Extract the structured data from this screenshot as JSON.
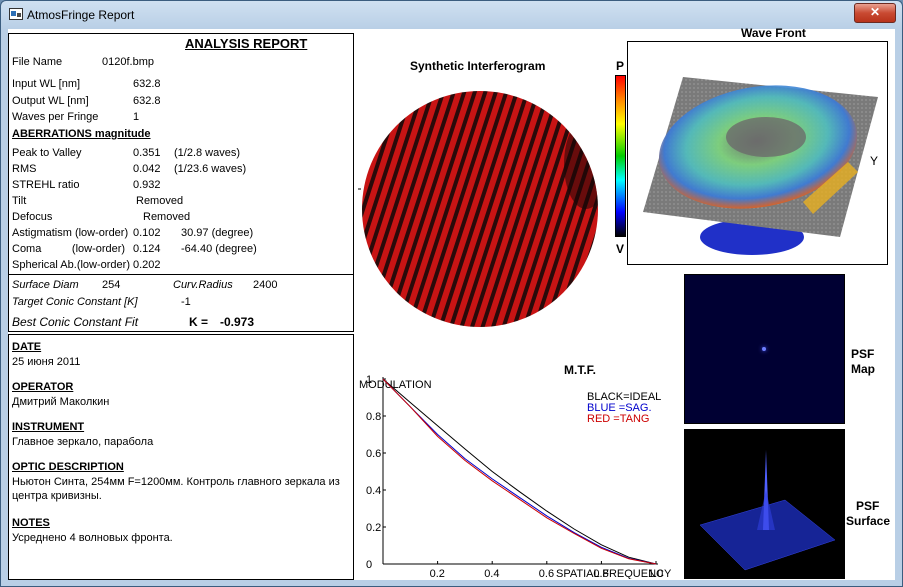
{
  "window": {
    "title": "AtmosFringe  Report",
    "close_label": "✕"
  },
  "report": {
    "heading": "ANALYSIS  REPORT",
    "file_name_label": "File Name",
    "file_name": "0120f.bmp",
    "input_wl_label": "Input  WL [nm]",
    "input_wl": "632.8",
    "output_wl_label": "Output WL [nm]",
    "output_wl": "632.8",
    "waves_label": "Waves per Fringe",
    "waves": "1",
    "aberr_heading": "ABERRATIONS magnitude",
    "pv_label": "Peak to Valley",
    "pv": "0.351",
    "pv_waves": "(1/2.8 waves)",
    "rms_label": "RMS",
    "rms": "0.042",
    "rms_waves": "(1/23.6 waves)",
    "strehl_label": "STREHL ratio",
    "strehl": "0.932",
    "tilt_label": "Tilt",
    "tilt": "Removed",
    "defocus_label": "Defocus",
    "defocus": "Removed",
    "astig_label": "Astigmatism  (low-order)",
    "astig": "0.102",
    "astig_deg": "30.97  (degree)",
    "coma_label": "Coma          (low-order)",
    "coma": "0.124",
    "coma_deg": "-64.40  (degree)",
    "spher_label": "Spherical Ab.(low-order)",
    "spher": "0.202",
    "surface_diam_label": "Surface Diam",
    "surface_diam": "254",
    "curv_label": "Curv.Radius",
    "curv": "2400",
    "target_conic_label": "Target Conic Constant [K]",
    "target_conic": "-1",
    "best_conic_label": "Best Conic Constant Fit",
    "k_label": "K =",
    "k_value": "-0.973"
  },
  "info": {
    "date_heading": "DATE",
    "date": "25 июня 2011",
    "operator_heading": "OPERATOR",
    "operator": "Дмитрий Маколкин",
    "instrument_heading": "INSTRUMENT",
    "instrument": "Главное зеркало, парабола",
    "optic_heading": "OPTIC DESCRIPTION",
    "optic_line1": "Ньютон Синта, 254мм F=1200мм. Контроль главного зеркала из",
    "optic_line2": "центра кривизны.",
    "notes_heading": "NOTES",
    "notes": "Усреднено 4 волновых фронта."
  },
  "interferogram": {
    "title": "Synthetic Interferogram",
    "scale_top": "P",
    "scale_bottom": "V"
  },
  "wavefront": {
    "title": "Wave Front",
    "axis_y": "Y"
  },
  "psf": {
    "map_label_1": "PSF",
    "map_label_2": "Map",
    "surface_label_1": "PSF",
    "surface_label_2": "Surface"
  },
  "chart_data": {
    "type": "line",
    "title": "M.T.F.",
    "ylabel": "MODULATION",
    "xlabel": "SPATIAL FREQUENCY",
    "xlim": [
      0,
      1
    ],
    "ylim": [
      0,
      1
    ],
    "x_ticks": [
      "0.2",
      "0.4",
      "0.6",
      "0.8",
      "1.0"
    ],
    "y_ticks": [
      "0",
      "0.2",
      "0.4",
      "0.6",
      "0.8",
      "1"
    ],
    "legend": [
      "BLACK=IDEAL",
      "BLUE  =SAG.",
      "RED    =TANG"
    ],
    "legend_position": "top-right",
    "x": [
      0,
      0.1,
      0.2,
      0.3,
      0.4,
      0.5,
      0.6,
      0.7,
      0.8,
      0.9,
      1.0
    ],
    "series": [
      {
        "name": "IDEAL",
        "color": "#000000",
        "values": [
          1.0,
          0.873,
          0.747,
          0.622,
          0.5,
          0.391,
          0.286,
          0.189,
          0.104,
          0.037,
          0.0
        ]
      },
      {
        "name": "SAG.",
        "color": "#0000cc",
        "values": [
          1.0,
          0.85,
          0.7,
          0.57,
          0.46,
          0.36,
          0.26,
          0.17,
          0.09,
          0.03,
          0.0
        ]
      },
      {
        "name": "TANG",
        "color": "#cc0000",
        "values": [
          1.0,
          0.85,
          0.69,
          0.56,
          0.45,
          0.35,
          0.25,
          0.165,
          0.085,
          0.028,
          0.0
        ]
      }
    ]
  }
}
